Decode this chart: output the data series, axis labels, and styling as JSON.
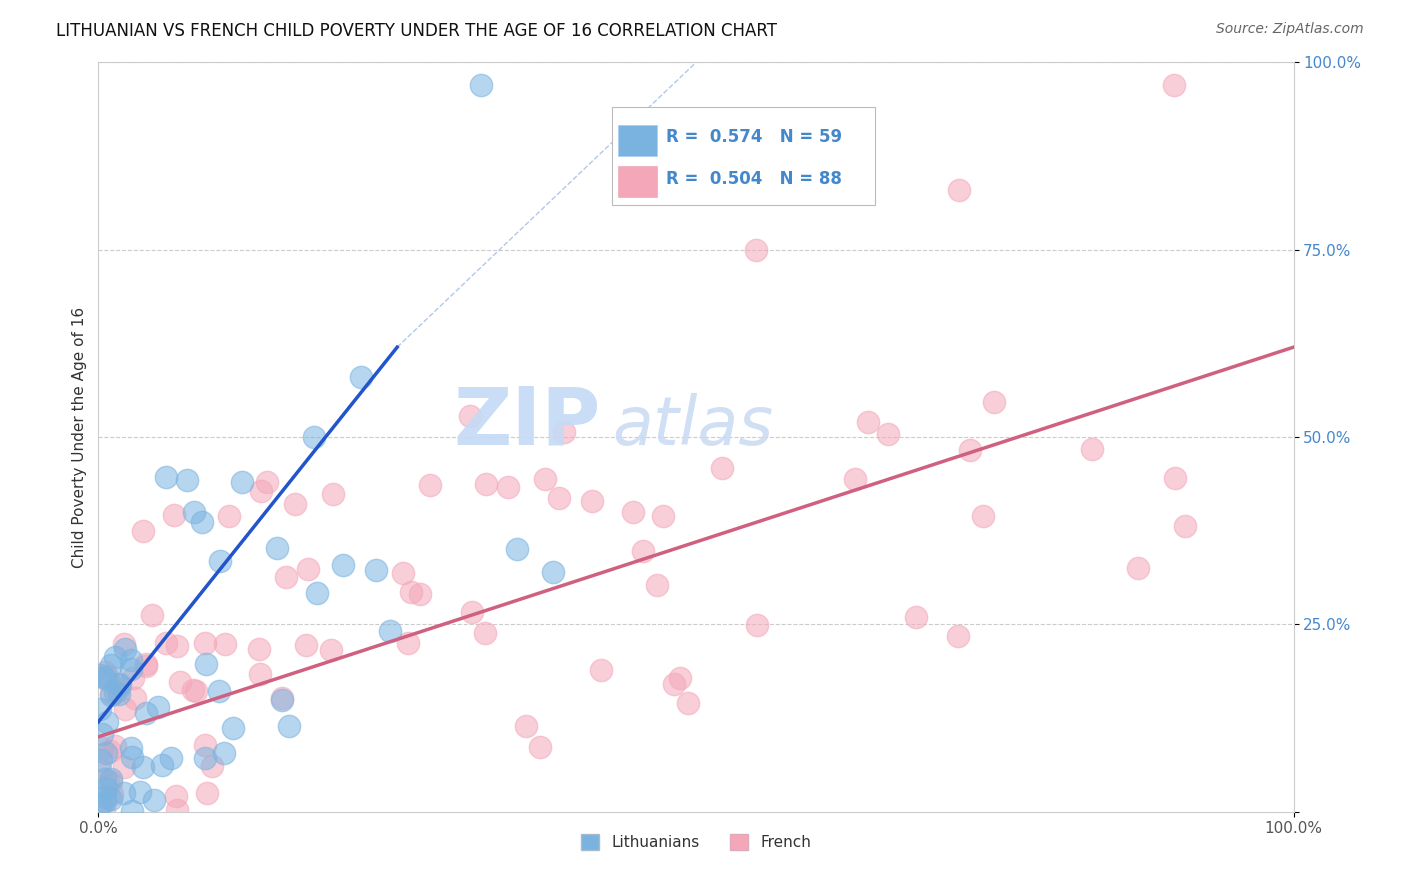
{
  "title": "LITHUANIAN VS FRENCH CHILD POVERTY UNDER THE AGE OF 16 CORRELATION CHART",
  "source": "Source: ZipAtlas.com",
  "ylabel": "Child Poverty Under the Age of 16",
  "xlim": [
    0,
    1
  ],
  "ylim": [
    0,
    1
  ],
  "ytick_labels": [
    "",
    "25.0%",
    "50.0%",
    "75.0%",
    "100.0%"
  ],
  "ytick_positions": [
    0,
    0.25,
    0.5,
    0.75,
    1.0
  ],
  "grid_color": "#cccccc",
  "background_color": "#ffffff",
  "watermark_zip_color": "#b8d4f0",
  "watermark_atlas_color": "#c8daf0",
  "legend_blue_label": "Lithuanians",
  "legend_pink_label": "French",
  "r_blue": "0.574",
  "n_blue": "59",
  "r_pink": "0.504",
  "n_pink": "88",
  "blue_color": "#7ab3e0",
  "pink_color": "#f4a7b9",
  "blue_line_color": "#2255cc",
  "pink_line_color": "#d06080",
  "diag_color": "#b0c8e8",
  "title_fontsize": 12,
  "source_fontsize": 10,
  "tick_color": "#4488cc",
  "blue_line_x": [
    0.0,
    0.25
  ],
  "blue_line_y": [
    0.12,
    0.62
  ],
  "pink_line_x": [
    0.0,
    1.0
  ],
  "pink_line_y": [
    0.1,
    0.62
  ]
}
